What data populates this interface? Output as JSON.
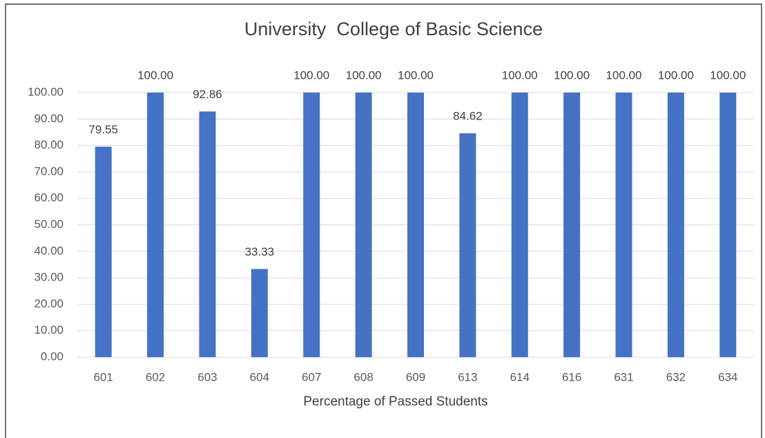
{
  "chart_data": {
    "type": "bar",
    "title": "University  College of Basic Science",
    "x_label": "Percentage of Passed Students",
    "categories": [
      "601",
      "602",
      "603",
      "604",
      "607",
      "608",
      "609",
      "613",
      "614",
      "616",
      "631",
      "632",
      "634"
    ],
    "values": [
      79.55,
      100,
      92.86,
      33.33,
      100,
      100,
      100,
      84.62,
      100,
      100,
      100,
      100,
      100
    ],
    "value_labels": [
      "79.55",
      "100.00",
      "92.86",
      "33.33",
      "100.00",
      "100.00",
      "100.00",
      "84.62",
      "100.00",
      "100.00",
      "100.00",
      "100.00",
      "100.00"
    ],
    "color": "#4472c4",
    "ylim": [
      0,
      100
    ],
    "yticks": [
      {
        "value": 0,
        "label": "0.00"
      },
      {
        "value": 10,
        "label": "10.00"
      },
      {
        "value": 20,
        "label": "20.00"
      },
      {
        "value": 30,
        "label": "30.00"
      },
      {
        "value": 40,
        "label": "40.00"
      },
      {
        "value": 50,
        "label": "50.00"
      },
      {
        "value": 60,
        "label": "60.00"
      },
      {
        "value": 70,
        "label": "70.00"
      },
      {
        "value": 80,
        "label": "80.00"
      },
      {
        "value": 90,
        "label": "90.00"
      },
      {
        "value": 100,
        "label": "100.00"
      }
    ],
    "grid": true
  }
}
